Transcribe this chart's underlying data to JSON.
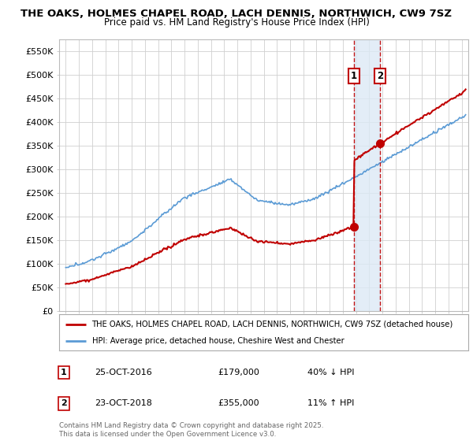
{
  "title1": "THE OAKS, HOLMES CHAPEL ROAD, LACH DENNIS, NORTHWICH, CW9 7SZ",
  "title2": "Price paid vs. HM Land Registry's House Price Index (HPI)",
  "ylabel_ticks": [
    "£0",
    "£50K",
    "£100K",
    "£150K",
    "£200K",
    "£250K",
    "£300K",
    "£350K",
    "£400K",
    "£450K",
    "£500K",
    "£550K"
  ],
  "ytick_vals": [
    0,
    50000,
    100000,
    150000,
    200000,
    250000,
    300000,
    350000,
    400000,
    450000,
    500000,
    550000
  ],
  "xmin": 1994.5,
  "xmax": 2025.5,
  "ymin": 0,
  "ymax": 575000,
  "hpi_color": "#5b9bd5",
  "price_color": "#c00000",
  "vline_color": "#c00000",
  "shade_color": "#dce9f5",
  "bg_color": "#ffffff",
  "grid_color": "#d0d0d0",
  "legend_label1": "THE OAKS, HOLMES CHAPEL ROAD, LACH DENNIS, NORTHWICH, CW9 7SZ (detached house)",
  "legend_label2": "HPI: Average price, detached house, Cheshire West and Chester",
  "sale1_date": 2016.82,
  "sale1_price": 179000,
  "sale2_date": 2018.82,
  "sale2_price": 355000,
  "footer": "Contains HM Land Registry data © Crown copyright and database right 2025.\nThis data is licensed under the Open Government Licence v3.0."
}
